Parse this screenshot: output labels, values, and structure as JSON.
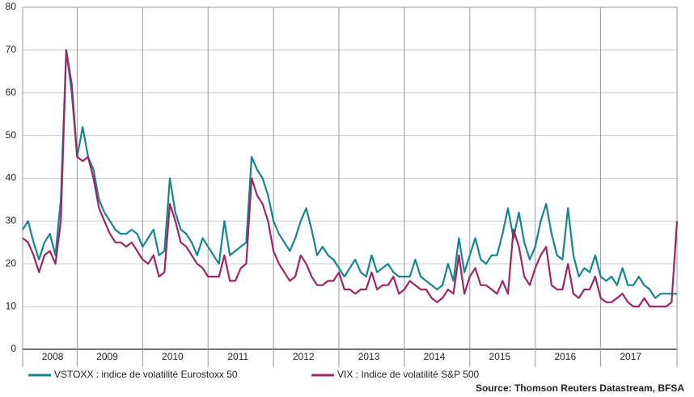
{
  "chart_data": {
    "type": "line",
    "source": "Source: Thomson Reuters Datastream, BFSA",
    "categories": [
      null,
      null,
      null,
      null,
      null,
      "2008",
      null,
      null,
      null,
      null,
      null,
      null,
      null,
      null,
      null,
      null,
      "2009",
      null,
      null,
      null,
      null,
      null,
      null,
      null,
      null,
      null,
      null,
      null,
      "2010",
      null,
      null,
      null,
      null,
      null,
      null,
      null,
      null,
      null,
      null,
      null,
      "2011",
      null,
      null,
      null,
      null,
      null,
      null,
      null,
      null,
      null,
      null,
      null,
      "2012",
      null,
      null,
      null,
      null,
      null,
      null,
      null,
      null,
      null,
      null,
      null,
      "2013",
      null,
      null,
      null,
      null,
      null,
      null,
      null,
      null,
      null,
      null,
      null,
      "2014",
      null,
      null,
      null,
      null,
      null,
      null,
      null,
      null,
      null,
      null,
      null,
      "2015",
      null,
      null,
      null,
      null,
      null,
      null,
      null,
      null,
      null,
      null,
      null,
      "2016",
      null,
      null,
      null,
      null,
      null,
      null,
      null,
      null,
      null,
      null,
      null,
      "2017",
      null,
      null,
      null,
      null,
      null,
      null,
      null,
      null
    ],
    "series": [
      {
        "name": "VSTOXX : indice de volatilité Eurostoxx 50",
        "color": "#17868a",
        "values": [
          28,
          30,
          25,
          21,
          25,
          27,
          22,
          35,
          70,
          60,
          45,
          52,
          45,
          42,
          35,
          32,
          30,
          28,
          27,
          27,
          28,
          27,
          24,
          26,
          28,
          22,
          23,
          40,
          32,
          28,
          27,
          25,
          22,
          26,
          24,
          22,
          20,
          30,
          22,
          23,
          24,
          25,
          45,
          42,
          40,
          36,
          30,
          27,
          25,
          23,
          26,
          30,
          33,
          28,
          22,
          24,
          22,
          21,
          19,
          17,
          19,
          21,
          18,
          17,
          22,
          18,
          19,
          20,
          18,
          17,
          17,
          17,
          21,
          17,
          16,
          15,
          14,
          15,
          20,
          16,
          26,
          18,
          22,
          26,
          21,
          20,
          22,
          22,
          27,
          33,
          26,
          32,
          25,
          21,
          24,
          30,
          34,
          27,
          22,
          21,
          33,
          22,
          17,
          19,
          18,
          22,
          17,
          16,
          17,
          15,
          19,
          15,
          15,
          17,
          15,
          14,
          12,
          13,
          13,
          13,
          13
        ]
      },
      {
        "name": "VIX : Indice de volatilité S&P 500",
        "color": "#9c2765",
        "values": [
          26,
          25,
          22,
          18,
          22,
          23,
          20,
          30,
          70,
          62,
          45,
          44,
          45,
          40,
          33,
          30,
          27,
          25,
          25,
          24,
          25,
          23,
          21,
          20,
          22,
          17,
          18,
          34,
          30,
          25,
          24,
          22,
          20,
          19,
          17,
          17,
          17,
          22,
          16,
          16,
          19,
          20,
          40,
          36,
          34,
          30,
          23,
          20,
          18,
          16,
          17,
          22,
          20,
          17,
          15,
          15,
          16,
          16,
          18,
          14,
          14,
          13,
          14,
          14,
          18,
          14,
          15,
          15,
          17,
          13,
          14,
          16,
          15,
          14,
          14,
          12,
          11,
          12,
          14,
          13,
          22,
          13,
          17,
          19,
          15,
          15,
          14,
          13,
          16,
          13,
          28,
          24,
          17,
          15,
          19,
          22,
          24,
          15,
          14,
          14,
          20,
          13,
          12,
          14,
          14,
          17,
          12,
          11,
          11,
          12,
          13,
          11,
          10,
          10,
          12,
          10,
          10,
          10,
          10,
          11,
          30
        ]
      }
    ],
    "ylim": [
      0,
      80
    ],
    "yticks": [
      0,
      10,
      20,
      30,
      40,
      50,
      60,
      70,
      80
    ],
    "grid": true
  }
}
